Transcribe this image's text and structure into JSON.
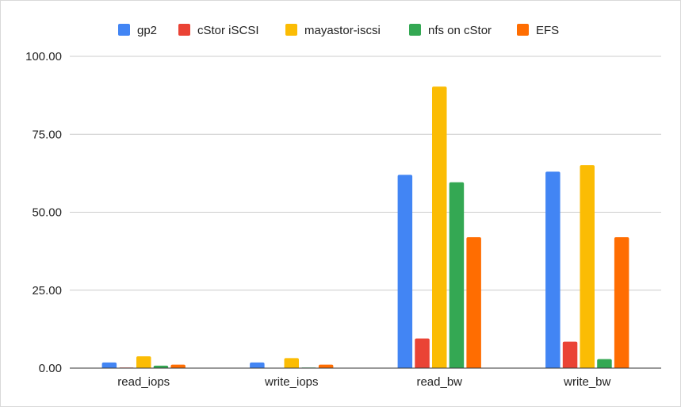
{
  "chart_data": {
    "type": "bar",
    "title": "",
    "xlabel": "",
    "ylabel": "",
    "categories": [
      "read_iops",
      "write_iops",
      "read_bw",
      "write_bw"
    ],
    "series": [
      {
        "name": "gp2",
        "color": "#4285f4",
        "values": [
          1.8,
          1.8,
          62.0,
          63.0
        ]
      },
      {
        "name": "cStor iSCSI",
        "color": "#ea4335",
        "values": [
          0.2,
          0.1,
          9.5,
          8.5
        ]
      },
      {
        "name": "mayastor-iscsi",
        "color": "#fbbc04",
        "values": [
          3.8,
          3.2,
          90.3,
          65.1
        ]
      },
      {
        "name": "nfs on cStor",
        "color": "#34a853",
        "values": [
          0.8,
          0.2,
          59.6,
          2.9
        ]
      },
      {
        "name": "EFS",
        "color": "#ff6d01",
        "values": [
          1.1,
          1.1,
          42.0,
          42.0
        ]
      }
    ],
    "ylim": [
      0,
      100
    ],
    "yticks": [
      "0.00",
      "25.00",
      "50.00",
      "75.00",
      "100.00"
    ],
    "grid": true,
    "legend_position": "top"
  }
}
